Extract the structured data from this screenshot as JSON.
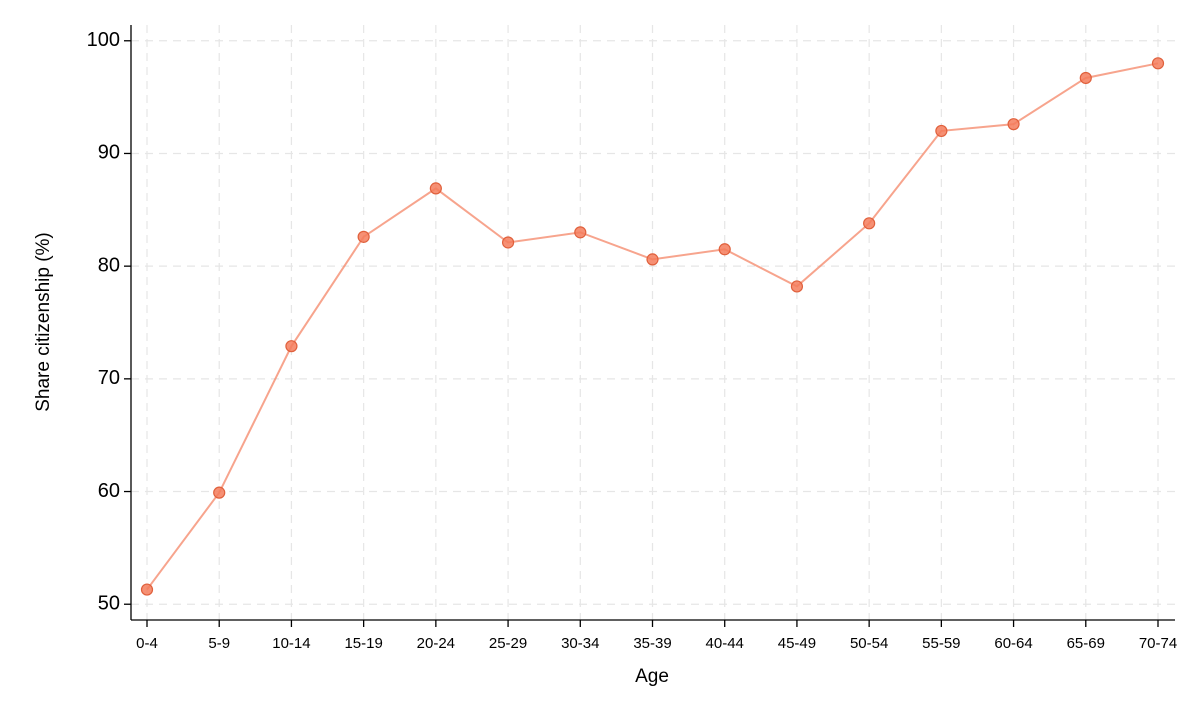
{
  "chart_data": {
    "type": "line",
    "x_label": "Age",
    "y_label": "Share citizenship (%)",
    "categories": [
      "0-4",
      "5-9",
      "10-14",
      "15-19",
      "20-24",
      "25-29",
      "30-34",
      "35-39",
      "40-44",
      "45-49",
      "50-54",
      "55-59",
      "60-64",
      "65-69",
      "70-74"
    ],
    "series": [
      {
        "color": "#f47d5c",
        "values": [
          51.3,
          59.9,
          72.9,
          82.6,
          86.9,
          82.1,
          83.0,
          80.6,
          81.5,
          78.2,
          83.8,
          92.0,
          92.6,
          96.7,
          98.0
        ]
      }
    ],
    "ylim": [
      48.6,
      101.4
    ],
    "yticks": [
      50,
      60,
      70,
      80,
      90,
      100
    ],
    "grid": true
  }
}
